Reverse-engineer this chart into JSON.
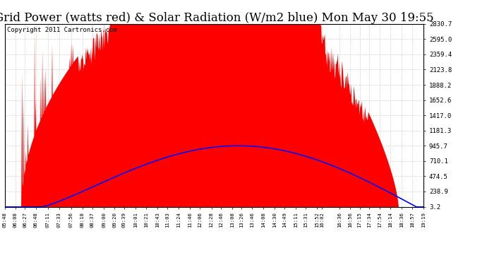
{
  "title": "Grid Power (watts red) & Solar Radiation (W/m2 blue) Mon May 30 19:55",
  "copyright": "Copyright 2011 Cartronics.com",
  "x_labels": [
    "05:48",
    "06:08",
    "06:27",
    "06:48",
    "07:11",
    "07:33",
    "07:56",
    "08:18",
    "08:37",
    "09:00",
    "09:20",
    "09:39",
    "10:01",
    "10:21",
    "10:43",
    "11:03",
    "11:24",
    "11:46",
    "12:06",
    "12:28",
    "12:46",
    "13:08",
    "13:26",
    "13:46",
    "14:08",
    "14:30",
    "14:49",
    "15:11",
    "15:31",
    "15:52",
    "16:02",
    "16:36",
    "16:56",
    "17:15",
    "17:34",
    "17:54",
    "18:14",
    "18:36",
    "18:57",
    "19:19"
  ],
  "y_ticks": [
    3.2,
    238.9,
    474.5,
    710.1,
    945.7,
    1181.3,
    1417.0,
    1652.6,
    1888.2,
    2123.8,
    2359.4,
    2595.0,
    2830.7
  ],
  "y_max": 2830.7,
  "y_min": 3.2,
  "background_color": "#ffffff",
  "grid_color": "#bbbbbb",
  "red_color": "#ff0000",
  "blue_color": "#0000ff",
  "title_fontsize": 12,
  "copyright_fontsize": 6.5
}
